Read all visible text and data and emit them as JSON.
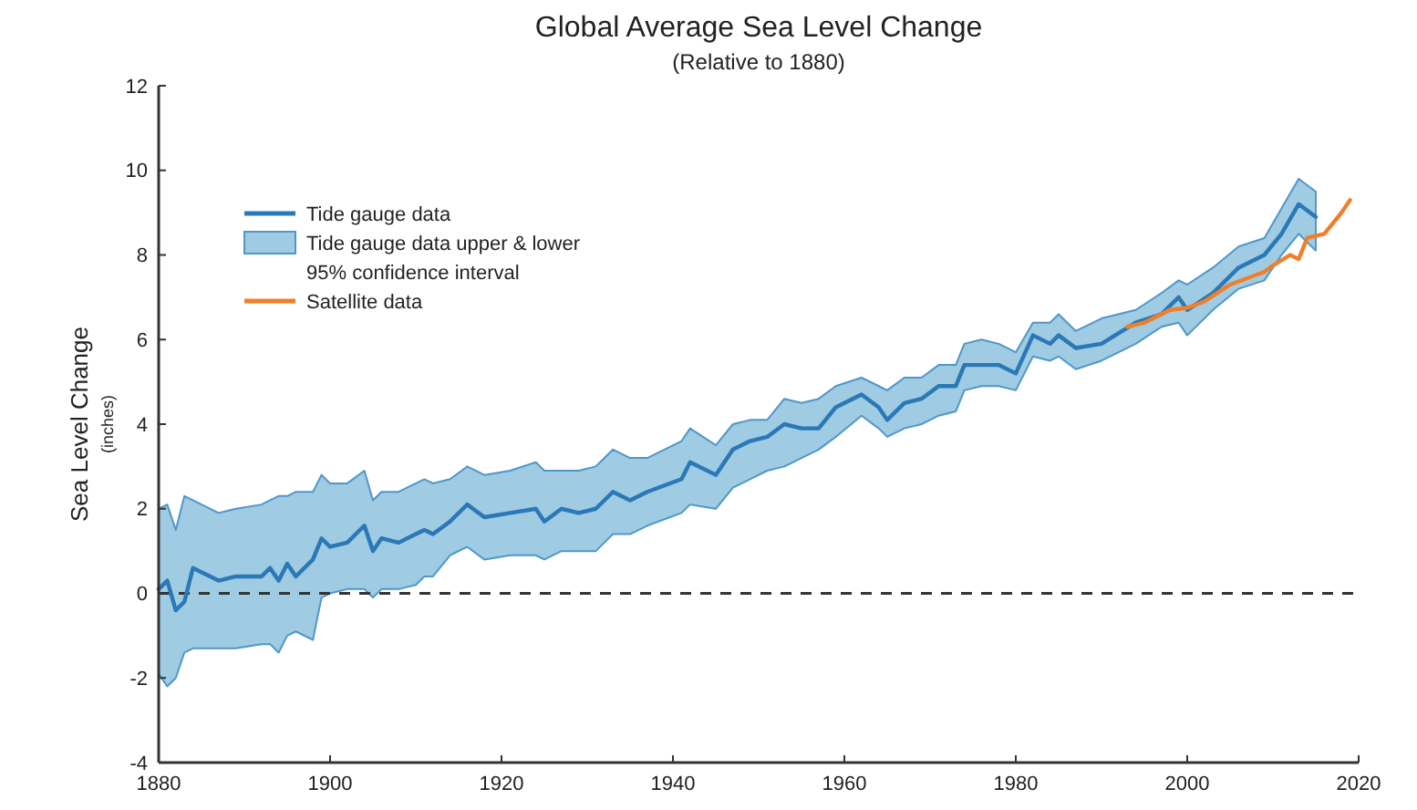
{
  "chart_data": {
    "type": "line",
    "title": "Global Average Sea Level Change",
    "subtitle": "(Relative to 1880)",
    "ylabel": "Sea Level Change\n(inches)",
    "xlim": [
      1880,
      2020
    ],
    "xticks": [
      1880,
      1900,
      1920,
      1940,
      1960,
      1980,
      2000,
      2020
    ],
    "ylim": [
      -4,
      12
    ],
    "yticks": [
      -4,
      -2,
      0,
      2,
      4,
      6,
      8,
      10,
      12
    ],
    "legend": "top left",
    "grid": false,
    "marker": "none",
    "line_style": "solid",
    "annotations": [
      "Tide gauge data upper & lower\n95% confidence interval"
    ],
    "ref_lines": [
      {
        "axis": "y",
        "value": 0,
        "label": null,
        "color": "#333333",
        "line_style": "dashed"
      }
    ],
    "series": [
      {
        "name": "Tide gauge data",
        "color": "#2a78b6",
        "x": [
          1880,
          1881,
          1882,
          1883,
          1884,
          1887,
          1889,
          1892,
          1893,
          1894,
          1895,
          1896,
          1898,
          1899,
          1900,
          1902,
          1904,
          1905,
          1906,
          1908,
          1910,
          1911,
          1912,
          1914,
          1916,
          1918,
          1921,
          1924,
          1925,
          1927,
          1929,
          1931,
          1933,
          1935,
          1937,
          1941,
          1942,
          1945,
          1947,
          1949,
          1951,
          1953,
          1955,
          1957,
          1959,
          1962,
          1964,
          1965,
          1967,
          1969,
          1971,
          1973,
          1974,
          1976,
          1978,
          1980,
          1982,
          1984,
          1985,
          1987,
          1990,
          1994,
          1997,
          1999,
          2000,
          2003,
          2006,
          2009,
          2011,
          2013,
          2015
        ],
        "values": [
          0.1,
          0.3,
          -0.4,
          -0.2,
          0.6,
          0.3,
          0.4,
          0.4,
          0.6,
          0.3,
          0.7,
          0.4,
          0.8,
          1.3,
          1.1,
          1.2,
          1.6,
          1.0,
          1.3,
          1.2,
          1.4,
          1.5,
          1.4,
          1.7,
          2.1,
          1.8,
          1.9,
          2.0,
          1.7,
          2.0,
          1.9,
          2.0,
          2.4,
          2.2,
          2.4,
          2.7,
          3.1,
          2.8,
          3.4,
          3.6,
          3.7,
          4.0,
          3.9,
          3.9,
          4.4,
          4.7,
          4.4,
          4.1,
          4.5,
          4.6,
          4.9,
          4.9,
          5.4,
          5.4,
          5.4,
          5.2,
          6.1,
          5.9,
          6.1,
          5.8,
          5.9,
          6.4,
          6.6,
          7.0,
          6.7,
          7.1,
          7.7,
          8.0,
          8.5,
          9.2,
          8.9
        ],
        "lower": [
          -1.9,
          -2.2,
          -2.0,
          -1.4,
          -1.3,
          -1.3,
          -1.3,
          -1.2,
          -1.2,
          -1.4,
          -1.0,
          -0.9,
          -1.1,
          -0.1,
          0.0,
          0.1,
          0.1,
          -0.1,
          0.1,
          0.1,
          0.2,
          0.4,
          0.4,
          0.9,
          1.1,
          0.8,
          0.9,
          0.9,
          0.8,
          1.0,
          1.0,
          1.0,
          1.4,
          1.4,
          1.6,
          1.9,
          2.1,
          2.0,
          2.5,
          2.7,
          2.9,
          3.0,
          3.2,
          3.4,
          3.7,
          4.2,
          3.9,
          3.7,
          3.9,
          4.0,
          4.2,
          4.3,
          4.8,
          4.9,
          4.9,
          4.8,
          5.6,
          5.5,
          5.6,
          5.3,
          5.5,
          5.9,
          6.3,
          6.4,
          6.1,
          6.7,
          7.2,
          7.4,
          8.0,
          8.5,
          8.1
        ],
        "upper": [
          2.0,
          2.1,
          1.5,
          2.3,
          2.2,
          1.9,
          2.0,
          2.1,
          2.2,
          2.3,
          2.3,
          2.4,
          2.4,
          2.8,
          2.6,
          2.6,
          2.9,
          2.2,
          2.4,
          2.4,
          2.6,
          2.7,
          2.6,
          2.7,
          3.0,
          2.8,
          2.9,
          3.1,
          2.9,
          2.9,
          2.9,
          3.0,
          3.4,
          3.2,
          3.2,
          3.6,
          3.9,
          3.5,
          4.0,
          4.1,
          4.1,
          4.6,
          4.5,
          4.6,
          4.9,
          5.1,
          4.9,
          4.8,
          5.1,
          5.1,
          5.4,
          5.4,
          5.9,
          6.0,
          5.9,
          5.7,
          6.4,
          6.4,
          6.6,
          6.2,
          6.5,
          6.7,
          7.1,
          7.4,
          7.3,
          7.7,
          8.2,
          8.4,
          9.1,
          9.8,
          9.5
        ]
      },
      {
        "name": "Satellite data",
        "color": "#f07f2a",
        "x": [
          1993,
          1995,
          1998,
          2000,
          2002,
          2005,
          2009,
          2010,
          2012,
          2013,
          2014,
          2016,
          2018,
          2019
        ],
        "values": [
          6.3,
          6.4,
          6.7,
          6.75,
          6.9,
          7.3,
          7.6,
          7.75,
          8.0,
          7.9,
          8.4,
          8.5,
          9.0,
          9.3
        ]
      }
    ]
  }
}
